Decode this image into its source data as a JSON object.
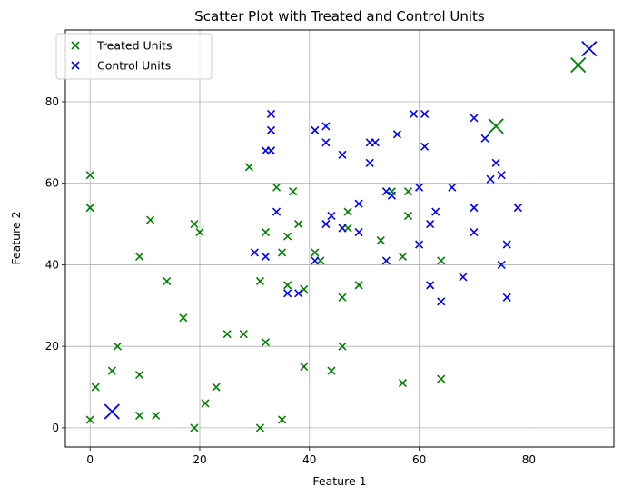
{
  "chart_data": {
    "type": "scatter",
    "title": "Scatter Plot with Treated and Control Units",
    "xlabel": "Feature 1",
    "ylabel": "Feature 2",
    "xlim": [
      -4.5,
      95.5
    ],
    "ylim": [
      -4.7,
      97.6
    ],
    "xticks": [
      0,
      20,
      40,
      60,
      80
    ],
    "yticks": [
      0,
      20,
      40,
      60,
      80
    ],
    "grid": true,
    "legend_position": "top-left",
    "marker": "x",
    "series": [
      {
        "name": "Treated Units",
        "color": "#008000",
        "points": [
          [
            0,
            62
          ],
          [
            0,
            54
          ],
          [
            0,
            2
          ],
          [
            1,
            10
          ],
          [
            4,
            14
          ],
          [
            5,
            20
          ],
          [
            9,
            42
          ],
          [
            9,
            13
          ],
          [
            9,
            3
          ],
          [
            11,
            51
          ],
          [
            12,
            3
          ],
          [
            14,
            36
          ],
          [
            17,
            27
          ],
          [
            19,
            50
          ],
          [
            19,
            0
          ],
          [
            20,
            48
          ],
          [
            21,
            6
          ],
          [
            23,
            10
          ],
          [
            25,
            23
          ],
          [
            28,
            23
          ],
          [
            29,
            64
          ],
          [
            31,
            36
          ],
          [
            31,
            0
          ],
          [
            32,
            48
          ],
          [
            32,
            21
          ],
          [
            33,
            68
          ],
          [
            34,
            59
          ],
          [
            35,
            43
          ],
          [
            35,
            2
          ],
          [
            36,
            47
          ],
          [
            36,
            35
          ],
          [
            37,
            58
          ],
          [
            38,
            50
          ],
          [
            39,
            34
          ],
          [
            39,
            15
          ],
          [
            41,
            43
          ],
          [
            42,
            41
          ],
          [
            44,
            14
          ],
          [
            46,
            32
          ],
          [
            46,
            20
          ],
          [
            47,
            53
          ],
          [
            47,
            49
          ],
          [
            49,
            35
          ],
          [
            53,
            46
          ],
          [
            55,
            58
          ],
          [
            57,
            42
          ],
          [
            57,
            11
          ],
          [
            58,
            58
          ],
          [
            58,
            52
          ],
          [
            64,
            41
          ],
          [
            64,
            12
          ]
        ],
        "highlight": [
          [
            89,
            89
          ],
          [
            74,
            74
          ]
        ]
      },
      {
        "name": "Control Units",
        "color": "#0000ff",
        "points": [
          [
            30,
            43
          ],
          [
            32,
            68
          ],
          [
            32,
            42
          ],
          [
            33,
            77
          ],
          [
            33,
            73
          ],
          [
            33,
            68
          ],
          [
            34,
            53
          ],
          [
            36,
            33
          ],
          [
            38,
            33
          ],
          [
            41,
            73
          ],
          [
            41,
            41
          ],
          [
            43,
            74
          ],
          [
            43,
            70
          ],
          [
            43,
            50
          ],
          [
            44,
            52
          ],
          [
            46,
            67
          ],
          [
            46,
            49
          ],
          [
            49,
            55
          ],
          [
            49,
            48
          ],
          [
            51,
            70
          ],
          [
            51,
            65
          ],
          [
            52,
            70
          ],
          [
            54,
            58
          ],
          [
            54,
            41
          ],
          [
            55,
            57
          ],
          [
            56,
            72
          ],
          [
            59,
            77
          ],
          [
            60,
            59
          ],
          [
            60,
            45
          ],
          [
            61,
            77
          ],
          [
            61,
            69
          ],
          [
            62,
            50
          ],
          [
            62,
            35
          ],
          [
            63,
            53
          ],
          [
            64,
            31
          ],
          [
            66,
            59
          ],
          [
            68,
            37
          ],
          [
            70,
            76
          ],
          [
            70,
            54
          ],
          [
            70,
            48
          ],
          [
            72,
            71
          ],
          [
            73,
            61
          ],
          [
            74,
            65
          ],
          [
            75,
            62
          ],
          [
            75,
            40
          ],
          [
            76,
            45
          ],
          [
            76,
            32
          ],
          [
            78,
            54
          ]
        ],
        "highlight": [
          [
            91,
            93
          ],
          [
            4,
            4
          ]
        ]
      }
    ]
  }
}
